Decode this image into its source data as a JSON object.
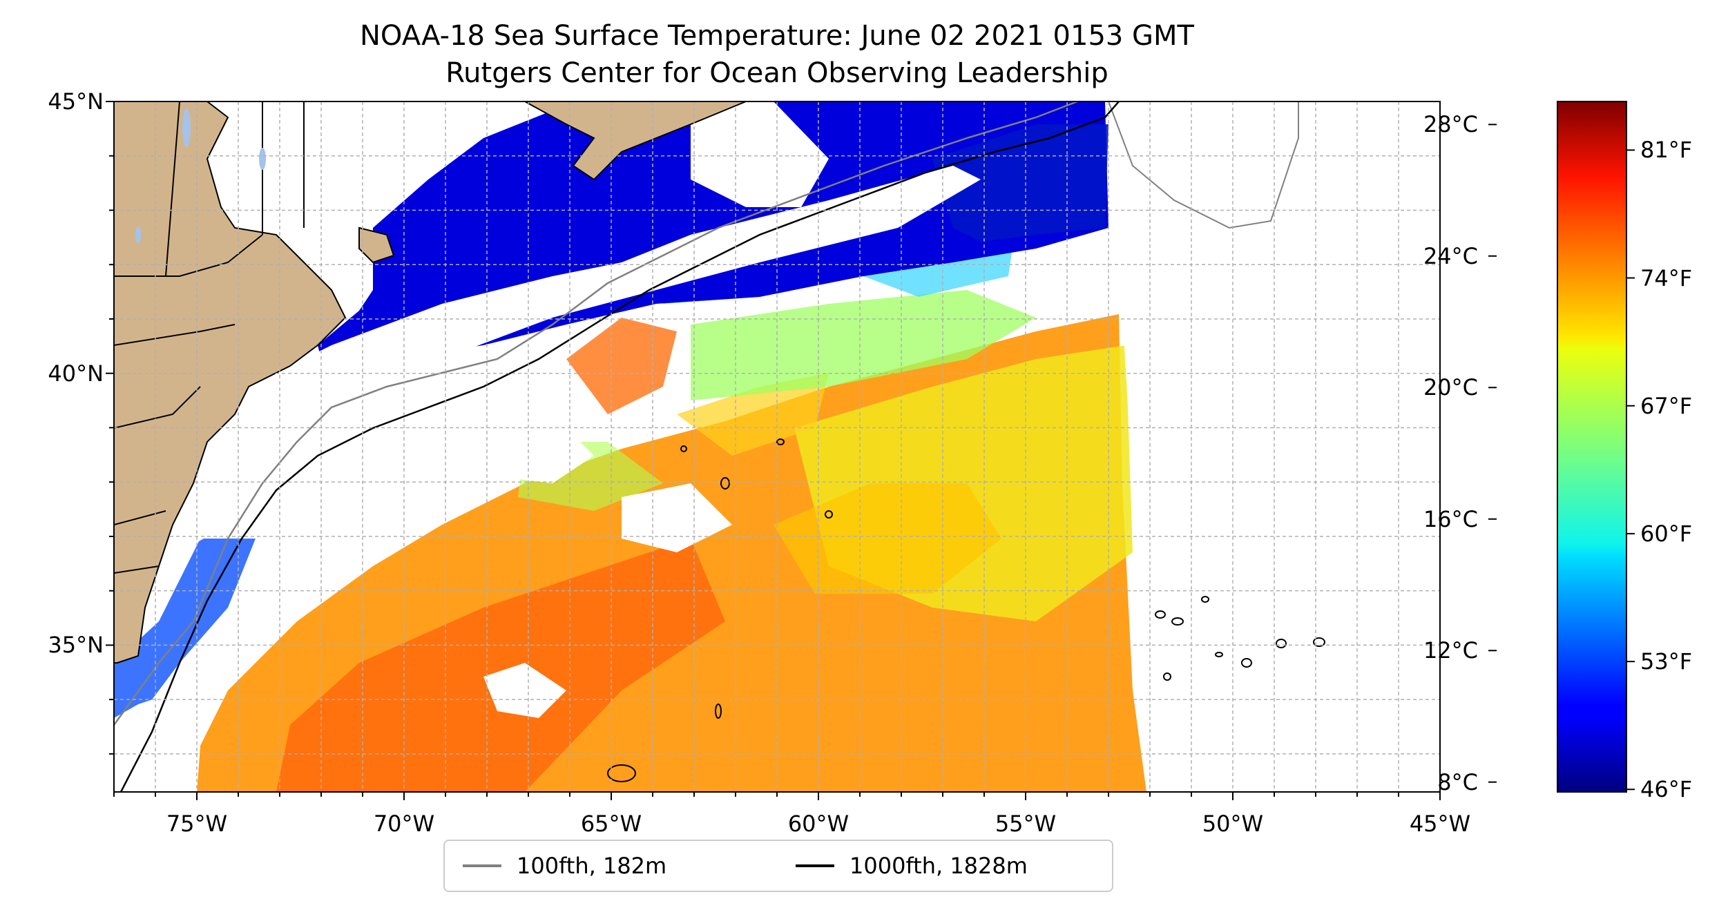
{
  "title": {
    "line1": "NOAA-18 Sea Surface Temperature: June 02 2021 0153 GMT",
    "line2": "Rutgers Center for Ocean Observing Leadership"
  },
  "map": {
    "lon_range": [
      -77,
      -45
    ],
    "lat_range": [
      32.3,
      45
    ],
    "lat_ticks": [
      {
        "value": 45,
        "label": "45°N"
      },
      {
        "value": 40,
        "label": "40°N"
      },
      {
        "value": 35,
        "label": "35°N"
      }
    ],
    "lon_ticks": [
      {
        "value": -75,
        "label": "75°W"
      },
      {
        "value": -70,
        "label": "70°W"
      },
      {
        "value": -65,
        "label": "65°W"
      },
      {
        "value": -60,
        "label": "60°W"
      },
      {
        "value": -55,
        "label": "55°W"
      },
      {
        "value": -50,
        "label": "50°W"
      },
      {
        "value": -45,
        "label": "45°W"
      }
    ],
    "gridlines": true,
    "colors": {
      "land": "#d2b48c",
      "lakes": "#a4c3ea",
      "isobath_100fth": "#808080",
      "isobath_1000fth": "#000000"
    }
  },
  "colorbar": {
    "colormap": "jet",
    "celsius_ticks": [
      "28°C",
      "24°C",
      "20°C",
      "16°C",
      "12°C",
      "8°C"
    ],
    "fahrenheit_ticks": [
      "81°F",
      "74°F",
      "67°F",
      "60°F",
      "53°F",
      "46°F"
    ],
    "range_celsius": [
      7.7,
      28.7
    ]
  },
  "legend": {
    "placement": "bottom-center",
    "items": [
      {
        "label": "100fth, 182m",
        "color": "#808080"
      },
      {
        "label": "1000fth, 1828m",
        "color": "#000000"
      }
    ]
  }
}
